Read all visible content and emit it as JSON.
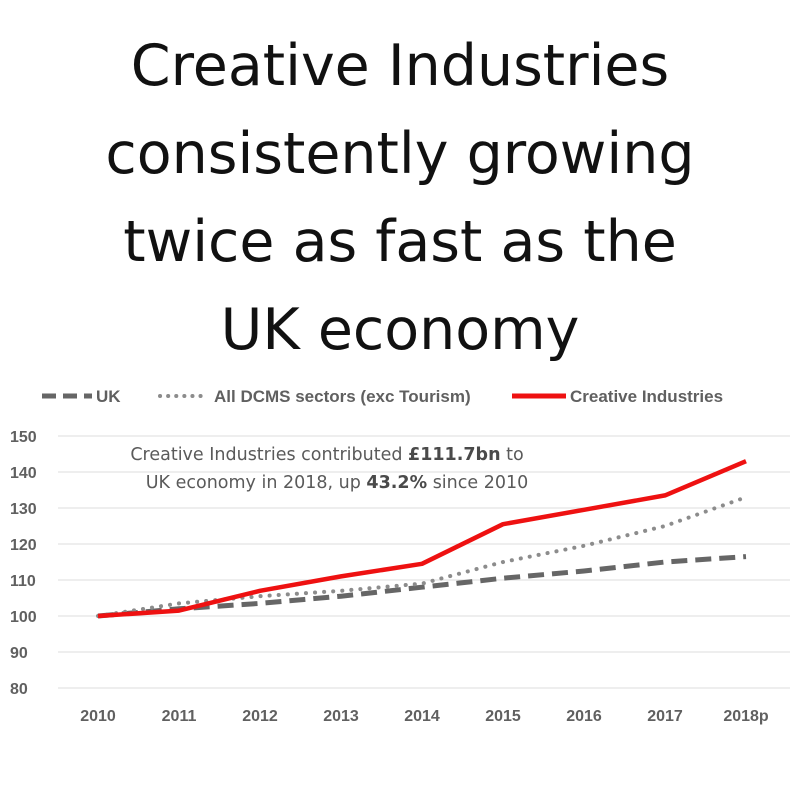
{
  "title_lines": [
    "Creative Industries",
    "consistently growing",
    "twice as fast as the",
    "UK economy"
  ],
  "chart_data": {
    "type": "line",
    "categories": [
      "2010",
      "2011",
      "2012",
      "2013",
      "2014",
      "2015",
      "2016",
      "2017",
      "2018p"
    ],
    "ylim": [
      80,
      150
    ],
    "yticks": [
      150,
      140,
      130,
      120,
      110,
      100,
      90,
      80
    ],
    "grid": true,
    "legend_position": "top",
    "series": [
      {
        "name": "UK",
        "style": "dashed",
        "color": "#666666",
        "values": [
          100,
          102,
          103.5,
          105.5,
          108,
          110.5,
          112.5,
          115,
          116.5
        ]
      },
      {
        "name": "All DCMS sectors (exc Tourism)",
        "style": "dotted",
        "color": "#8c8c8c",
        "values": [
          100,
          103.5,
          105.5,
          107,
          109,
          115,
          119.5,
          125,
          133
        ]
      },
      {
        "name": "Creative Industries",
        "style": "solid",
        "color": "#ee1111",
        "values": [
          100,
          101.5,
          107,
          111,
          114.5,
          125.5,
          129.5,
          133.5,
          143
        ]
      }
    ],
    "annotation": {
      "line1_pre": "Creative Industries contributed ",
      "line1_bold": "£111.7bn",
      "line1_post": " to",
      "line2_pre": "UK economy in 2018, up ",
      "line2_bold": "43.2%",
      "line2_post": " since 2010"
    }
  }
}
